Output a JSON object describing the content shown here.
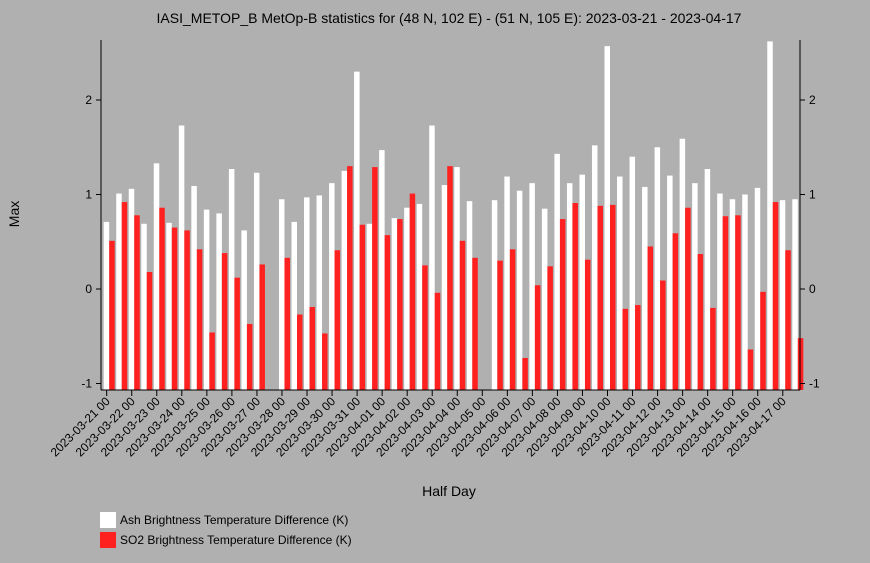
{
  "chart_data": {
    "type": "bar",
    "title": "IASI_METOP_B MetOp-B statistics for (48 N, 102 E) - (51 N, 105 E): 2023-03-21 - 2023-04-17",
    "xlabel": "Half Day",
    "ylabel": "Max",
    "ylim": [
      -1.08,
      2.62
    ],
    "yticks": [
      -1,
      0,
      1,
      2
    ],
    "ytick_labels": [
      "-1",
      "0",
      "1",
      "2"
    ],
    "xtick_labels": [
      "2023-03-21 00",
      "2023-03-22 00",
      "2023-03-23 00",
      "2023-03-24 00",
      "2023-03-25 00",
      "2023-03-26 00",
      "2023-03-27 00",
      "2023-03-28 00",
      "2023-03-29 00",
      "2023-03-30 00",
      "2023-03-31 00",
      "2023-04-01 00",
      "2023-04-02 00",
      "2023-04-03 00",
      "2023-04-04 00",
      "2023-04-05 00",
      "2023-04-06 00",
      "2023-04-07 00",
      "2023-04-08 00",
      "2023-04-09 00",
      "2023-04-10 00",
      "2023-04-11 00",
      "2023-04-12 00",
      "2023-04-13 00",
      "2023-04-14 00",
      "2023-04-15 00",
      "2023-04-16 00",
      "2023-04-17 00"
    ],
    "grid": false,
    "legend_position": "bottom-left",
    "series": [
      {
        "name": "Ash Brightness Temperature Difference (K)",
        "color": "#ffffff",
        "values": [
          0.71,
          1.01,
          1.06,
          0.69,
          1.33,
          0.7,
          1.73,
          1.09,
          0.84,
          0.8,
          1.27,
          0.62,
          1.23,
          null,
          0.95,
          0.71,
          0.97,
          0.99,
          1.12,
          1.25,
          2.3,
          0.69,
          1.47,
          0.75,
          0.86,
          0.9,
          1.73,
          1.1,
          1.29,
          0.93,
          null,
          0.94,
          1.19,
          1.04,
          1.12,
          0.85,
          1.43,
          1.12,
          1.21,
          1.52,
          2.57,
          1.19,
          1.4,
          1.08,
          1.5,
          1.2,
          1.59,
          1.12,
          1.27,
          1.01,
          0.95,
          1.0,
          1.07,
          2.62,
          0.94,
          0.95
        ]
      },
      {
        "name": "SO2 Brightness Temperature Difference (K)",
        "color": "#ff2020",
        "values": [
          0.51,
          0.92,
          0.78,
          0.18,
          0.86,
          0.65,
          0.62,
          0.42,
          -0.46,
          0.38,
          0.12,
          -0.37,
          0.26,
          null,
          0.33,
          -0.27,
          -0.19,
          -0.47,
          0.41,
          1.3,
          0.68,
          1.29,
          0.57,
          0.74,
          1.01,
          0.25,
          -0.04,
          1.3,
          0.51,
          0.33,
          null,
          0.3,
          0.42,
          -0.73,
          0.04,
          0.24,
          0.74,
          0.91,
          0.31,
          0.88,
          0.89,
          -0.21,
          -0.17,
          0.45,
          0.09,
          0.59,
          0.86,
          0.37,
          -0.2,
          0.77,
          0.78,
          -0.64,
          -0.03,
          0.92,
          0.41,
          -0.52
        ]
      }
    ]
  }
}
